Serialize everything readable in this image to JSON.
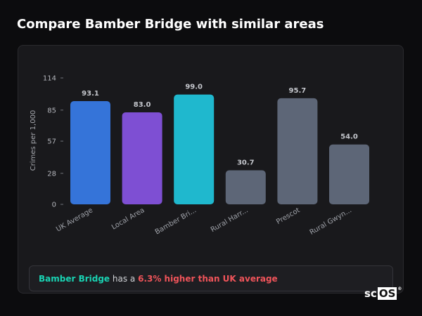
{
  "page": {
    "title": "Compare Bamber Bridge with similar areas"
  },
  "colors": {
    "background": "#0c0c0e",
    "card": "#19191c",
    "uk_average": "#3574d9",
    "local_area": "#7e4fd3",
    "bamber_bridge": "#1fb8ce",
    "other_area": "#5d6677",
    "highlight_text": "#19d3b3",
    "negative_text": "#f0545a"
  },
  "chart_data": {
    "type": "bar",
    "title": "",
    "xlabel": "",
    "ylabel": "Crimes per 1,000",
    "ylim": [
      0,
      114
    ],
    "yticks": [
      0,
      28,
      57,
      85,
      114
    ],
    "yticks_labels": [
      "0",
      "28",
      "57",
      "85",
      "114"
    ],
    "grid": false,
    "categories": [
      "UK Average",
      "Local Area",
      "Bamber Bri...",
      "Rural Harr...",
      "Prescot",
      "Rural Gwyn..."
    ],
    "values": [
      93.1,
      83.0,
      99.0,
      30.7,
      95.7,
      54.0
    ],
    "value_labels": [
      "93.1",
      "83.0",
      "99.0",
      "30.7",
      "95.7",
      "54.0"
    ],
    "bar_colors": [
      "#3574d9",
      "#7e4fd3",
      "#1fb8ce",
      "#5d6677",
      "#5d6677",
      "#5d6677"
    ]
  },
  "summary": {
    "area": "Bamber Bridge",
    "middle": " has a ",
    "delta": "6.3% higher than UK average"
  },
  "logo": {
    "part_a": "sc",
    "part_b": "OS",
    "mark": "®"
  }
}
